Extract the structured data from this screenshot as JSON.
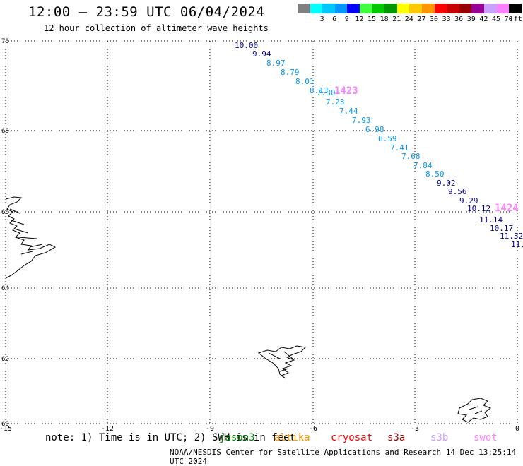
{
  "header": {
    "title": "12:00 – 23:59 UTC 06/04/2024",
    "subtitle": "12 hour collection of altimeter wave heights"
  },
  "legend": {
    "unit": "(ft)",
    "swatches": [
      {
        "label": "",
        "color": "#808080"
      },
      {
        "label": "3",
        "color": "#00ffff"
      },
      {
        "label": "6",
        "color": "#00c8ff"
      },
      {
        "label": "9",
        "color": "#0096ff"
      },
      {
        "label": "12",
        "color": "#0000ff"
      },
      {
        "label": "15",
        "color": "#40ff40"
      },
      {
        "label": "18",
        "color": "#00c800"
      },
      {
        "label": "21",
        "color": "#009600"
      },
      {
        "label": "24",
        "color": "#ffff00"
      },
      {
        "label": "27",
        "color": "#ffc800"
      },
      {
        "label": "30",
        "color": "#ff9600"
      },
      {
        "label": "33",
        "color": "#ff0000"
      },
      {
        "label": "36",
        "color": "#c80000"
      },
      {
        "label": "39",
        "color": "#960000"
      },
      {
        "label": "42",
        "color": "#960096"
      },
      {
        "label": "45",
        "color": "#c8a0ff"
      },
      {
        "label": "70",
        "color": "#ff80ff"
      },
      {
        "label": "",
        "color": "#000000"
      }
    ]
  },
  "map": {
    "lon_ticks": [
      "-15",
      "-12",
      "-9",
      "-6",
      "-3",
      "0"
    ],
    "lat_ticks": [
      "70",
      "68",
      "66",
      "64",
      "62",
      "60"
    ],
    "track_labels": [
      {
        "text": "1423",
        "color": "#ff80ff"
      },
      {
        "text": "1424",
        "color": "#ff80ff"
      }
    ],
    "swh": [
      {
        "v": "10.00",
        "color": "#00008b"
      },
      {
        "v": "9.94",
        "color": "#00008b"
      },
      {
        "v": "8.97",
        "color": "#0096ff"
      },
      {
        "v": "8.79",
        "color": "#0096ff"
      },
      {
        "v": "8.01",
        "color": "#0096ff"
      },
      {
        "v": "8.13",
        "color": "#0096ff"
      },
      {
        "v": "7.30",
        "color": "#0096ff"
      },
      {
        "v": "7.23",
        "color": "#0096ff"
      },
      {
        "v": "7.44",
        "color": "#0096ff"
      },
      {
        "v": "7.93",
        "color": "#0096ff"
      },
      {
        "v": "6.98",
        "color": "#0096ff"
      },
      {
        "v": "6.59",
        "color": "#0096ff"
      },
      {
        "v": "7.41",
        "color": "#0096ff"
      },
      {
        "v": "7.68",
        "color": "#0096ff"
      },
      {
        "v": "7.84",
        "color": "#0096ff"
      },
      {
        "v": "8.50",
        "color": "#0096ff"
      },
      {
        "v": "9.02",
        "color": "#00008b"
      },
      {
        "v": "9.56",
        "color": "#00008b"
      },
      {
        "v": "9.29",
        "color": "#00008b"
      },
      {
        "v": "10.12",
        "color": "#00008b"
      },
      {
        "v": "11.14",
        "color": "#00008b"
      },
      {
        "v": "10.17",
        "color": "#00008b"
      },
      {
        "v": "11.32",
        "color": "#00008b"
      },
      {
        "v": "11.",
        "color": "#00008b"
      }
    ]
  },
  "notes": {
    "text": "note:  1) Time is in UTC; 2) SWH is in feet",
    "satellites": [
      {
        "name": "jason3",
        "color": "#008000"
      },
      {
        "name": "altika",
        "color": "#ff9600"
      },
      {
        "name": "cryosat",
        "color": "#ff0000"
      },
      {
        "name": "s3a",
        "color": "#960000"
      },
      {
        "name": "s3b",
        "color": "#c8a0ff"
      },
      {
        "name": "swot",
        "color": "#ff80ff"
      }
    ]
  },
  "footer": {
    "text": "NOAA/NESDIS Center for Satellite Applications and Research    14 Dec 13:25:14 UTC 2024"
  }
}
